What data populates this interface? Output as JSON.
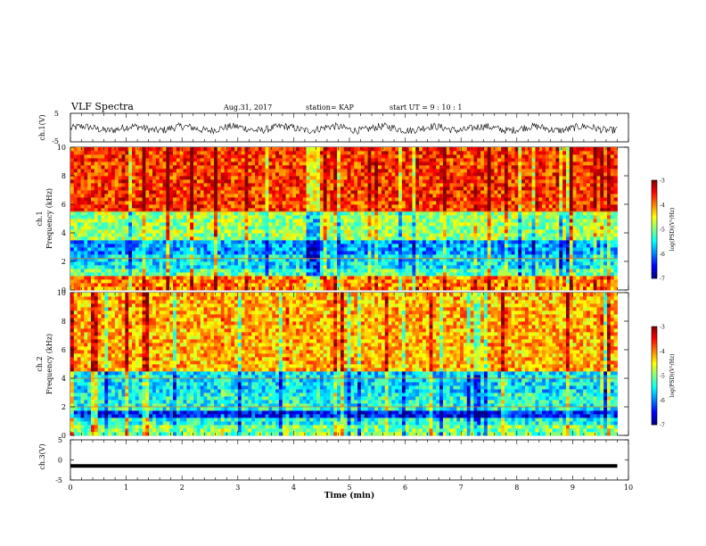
{
  "header": {
    "title": "VLF Spectra",
    "date": "Aug.31, 2017",
    "station": "station= KAP",
    "start": "start  UT  =   9 : 10 : 1"
  },
  "chart_data": [
    {
      "type": "line",
      "name": "ch1-waveform",
      "ylabel": "ch.1(V)",
      "ylim": [
        -5,
        5
      ],
      "y_ticks": [
        "5",
        "-5"
      ],
      "x_range": [
        0,
        10
      ],
      "note_series": "noisy voltage trace between about -2 and 1.5 V"
    },
    {
      "type": "heatmap",
      "name": "ch1-spectrogram",
      "ylabel": "ch.1\nFrequency (kHz)",
      "ylabel_lines": [
        "ch.1",
        "Frequency  (kHz)"
      ],
      "ylim": [
        0,
        10
      ],
      "y_ticks": [
        "0",
        "2",
        "4",
        "6",
        "8",
        "10"
      ],
      "x_range": [
        0,
        9.8
      ],
      "colorbar": {
        "label": "log(PSD)(V²/Hz)",
        "ticks": [
          "-3",
          "-4",
          "-5",
          "-6",
          "-7"
        ],
        "range": [
          -7,
          -3
        ]
      },
      "bands": [
        {
          "from": 0.0,
          "to": 0.9,
          "level": -4.0
        },
        {
          "from": 0.9,
          "to": 1.6,
          "level": -5.2
        },
        {
          "from": 1.6,
          "to": 2.4,
          "level": -5.6
        },
        {
          "from": 2.4,
          "to": 3.4,
          "level": -5.9
        },
        {
          "from": 3.4,
          "to": 5.4,
          "level": -4.9
        },
        {
          "from": 5.4,
          "to": 10.0,
          "level": -3.7
        }
      ],
      "lines_khz": [
        2.2,
        5.5
      ]
    },
    {
      "type": "heatmap",
      "name": "ch2-spectrogram",
      "ylabel_lines": [
        "ch.2",
        "Frequency  (kHz)"
      ],
      "ylim": [
        0,
        10
      ],
      "y_ticks": [
        "0",
        "2",
        "4",
        "6",
        "8",
        "10"
      ],
      "x_range": [
        0,
        9.8
      ],
      "colorbar": {
        "label": "log(PSD)(V²/Hz)",
        "ticks": [
          "-3",
          "-4",
          "-5",
          "-6",
          "-7"
        ],
        "range": [
          -7,
          -3
        ]
      },
      "bands": [
        {
          "from": 0.0,
          "to": 0.7,
          "level": -5.0
        },
        {
          "from": 0.7,
          "to": 1.2,
          "level": -5.4
        },
        {
          "from": 1.2,
          "to": 1.8,
          "level": -6.4
        },
        {
          "from": 1.8,
          "to": 3.0,
          "level": -5.4
        },
        {
          "from": 3.0,
          "to": 4.6,
          "level": -5.6
        },
        {
          "from": 4.6,
          "to": 10.0,
          "level": -4.2
        }
      ],
      "lines_khz": [
        2.0,
        4.0
      ]
    },
    {
      "type": "line",
      "name": "ch3-waveform",
      "ylabel": "ch.3(V)",
      "ylim": [
        -5,
        5
      ],
      "y_ticks": [
        "5",
        "0",
        "-5"
      ],
      "x_range": [
        0,
        9.8
      ],
      "constant_value": -1.5
    }
  ],
  "x_axis": {
    "label": "Time  (min)",
    "ticks": [
      "0",
      "1",
      "2",
      "3",
      "4",
      "5",
      "6",
      "7",
      "8",
      "9",
      "10"
    ],
    "range": [
      0,
      10
    ]
  }
}
